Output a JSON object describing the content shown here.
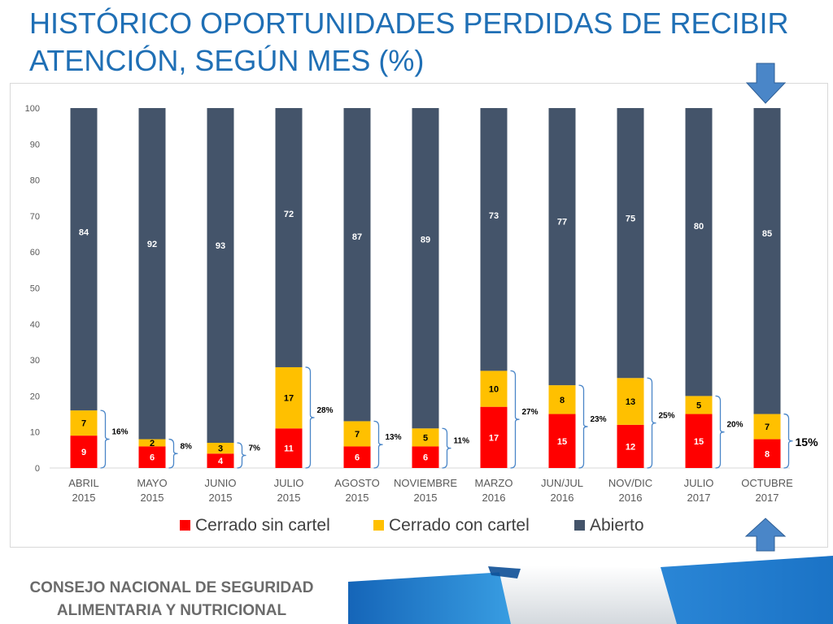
{
  "slide": {
    "title_line1": "HISTÓRICO OPORTUNIDADES PERDIDAS DE RECIBIR",
    "title_line2": "ATENCIÓN, SEGÚN MES (%)",
    "footer_line1": "CONSEJO NACIONAL DE SEGURIDAD",
    "footer_line2": "ALIMENTARIA Y NUTRICIONAL"
  },
  "colors": {
    "title": "#1f6fb5",
    "cerrado_sin_cartel": "#ff0000",
    "cerrado_con_cartel": "#ffc000",
    "abierto": "#44546a",
    "arrow": "#4a86c8"
  },
  "icons": [
    "arrow-down-icon",
    "arrow-up-icon"
  ],
  "chart_data": {
    "type": "bar",
    "stacked": true,
    "categories": [
      [
        "ABRIL",
        "2015"
      ],
      [
        "MAYO",
        "2015"
      ],
      [
        "JUNIO",
        "2015"
      ],
      [
        "JULIO",
        "2015"
      ],
      [
        "AGOSTO",
        "2015"
      ],
      [
        "NOVIEMBRE",
        "2015"
      ],
      [
        "MARZO",
        "2016"
      ],
      [
        "JUN/JUL",
        "2016"
      ],
      [
        "NOV/DIC",
        "2016"
      ],
      [
        "JULIO",
        "2017"
      ],
      [
        "OCTUBRE",
        "2017"
      ]
    ],
    "series": [
      {
        "name": "Cerrado sin cartel",
        "values": [
          9,
          6,
          4,
          11,
          6,
          6,
          17,
          15,
          12,
          15,
          8
        ]
      },
      {
        "name": "Cerrado con cartel",
        "values": [
          7,
          2,
          3,
          17,
          7,
          5,
          10,
          8,
          13,
          5,
          7
        ]
      },
      {
        "name": "Abierto",
        "values": [
          84,
          92,
          93,
          72,
          87,
          89,
          73,
          77,
          75,
          80,
          85
        ]
      }
    ],
    "closed_totals": [
      "16%",
      "8%",
      "7%",
      "28%",
      "13%",
      "11%",
      "27%",
      "23%",
      "25%",
      "20%",
      "15%"
    ],
    "ylim": [
      0,
      100
    ],
    "yticks": [
      0,
      10,
      20,
      30,
      40,
      50,
      60,
      70,
      80,
      90,
      100
    ],
    "legend_position": "bottom",
    "highlighted_category": "OCTUBRE 2017"
  }
}
